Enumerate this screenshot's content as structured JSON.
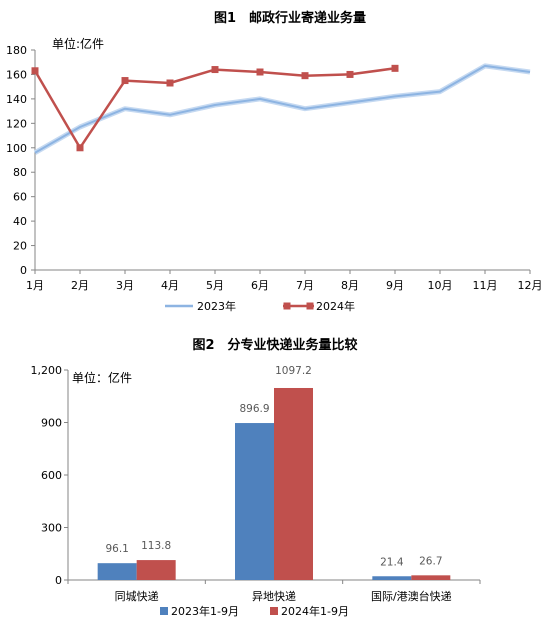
{
  "chart_data": [
    {
      "type": "line",
      "title": "图1　邮政行业寄递业务量",
      "unit_label": "单位:亿件",
      "categories": [
        "1月",
        "2月",
        "3月",
        "4月",
        "5月",
        "6月",
        "7月",
        "8月",
        "9月",
        "10月",
        "11月",
        "12月"
      ],
      "ylim": [
        0,
        180
      ],
      "yticks": [
        0,
        20,
        40,
        60,
        80,
        100,
        120,
        140,
        160,
        180
      ],
      "grid": false,
      "legend_position": "bottom",
      "series": [
        {
          "name": "2023年",
          "color": "#8DB4E2",
          "marker": "none",
          "values": [
            96,
            117,
            132,
            127,
            135,
            140,
            132,
            137,
            142,
            146,
            167,
            162
          ]
        },
        {
          "name": "2024年",
          "color": "#C0504D",
          "marker": "square",
          "values": [
            163,
            100,
            155,
            153,
            164,
            162,
            159,
            160,
            165,
            null,
            null,
            null
          ]
        }
      ]
    },
    {
      "type": "bar",
      "title": "图2　分专业快递业务量比较",
      "unit_label": "单位：亿件",
      "categories": [
        "同城快递",
        "异地快递",
        "国际/港澳台快递"
      ],
      "ylim": [
        0,
        1200
      ],
      "yticks": [
        0,
        300,
        600,
        900,
        1200
      ],
      "ytick_labels": [
        "0",
        "300",
        "600",
        "900",
        "1,200"
      ],
      "grid": false,
      "legend_position": "bottom",
      "series": [
        {
          "name": "2023年1-9月",
          "color": "#4F81BD",
          "values": [
            96.1,
            896.9,
            21.4
          ],
          "labels": [
            "96.1",
            "896.9",
            "21.4"
          ]
        },
        {
          "name": "2024年1-9月",
          "color": "#C0504D",
          "values": [
            113.8,
            1097.2,
            26.7
          ],
          "labels": [
            "113.8",
            "1097.2",
            "26.7"
          ]
        }
      ]
    }
  ]
}
